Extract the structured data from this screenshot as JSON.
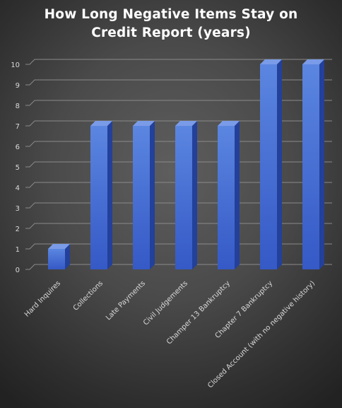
{
  "chart_data": {
    "type": "bar",
    "title_lines": [
      "How Long Negative Items Stay on",
      "Credit Report (years)"
    ],
    "categories": [
      "Hard Inquires",
      "Collections",
      "Late Payments",
      "Civil Judgements",
      "Champer 13 Bankruptcy",
      "Chapter 7 Bankruptcy",
      "Closed Account (with no negative history)"
    ],
    "values": [
      1,
      7,
      7,
      7,
      7,
      10,
      10
    ],
    "yticks": [
      "0",
      "1",
      "2",
      "3",
      "4",
      "5",
      "6",
      "7",
      "8",
      "9",
      "10"
    ],
    "ylim": [
      0,
      10
    ],
    "grid": true,
    "legend": "none",
    "colors": {
      "bar_front_top": "#5b86e0",
      "bar_front_bottom": "#3559c6",
      "bar_side": "#23409a",
      "bar_top": "#7a9be8",
      "grid": "#8a8a8a"
    }
  }
}
